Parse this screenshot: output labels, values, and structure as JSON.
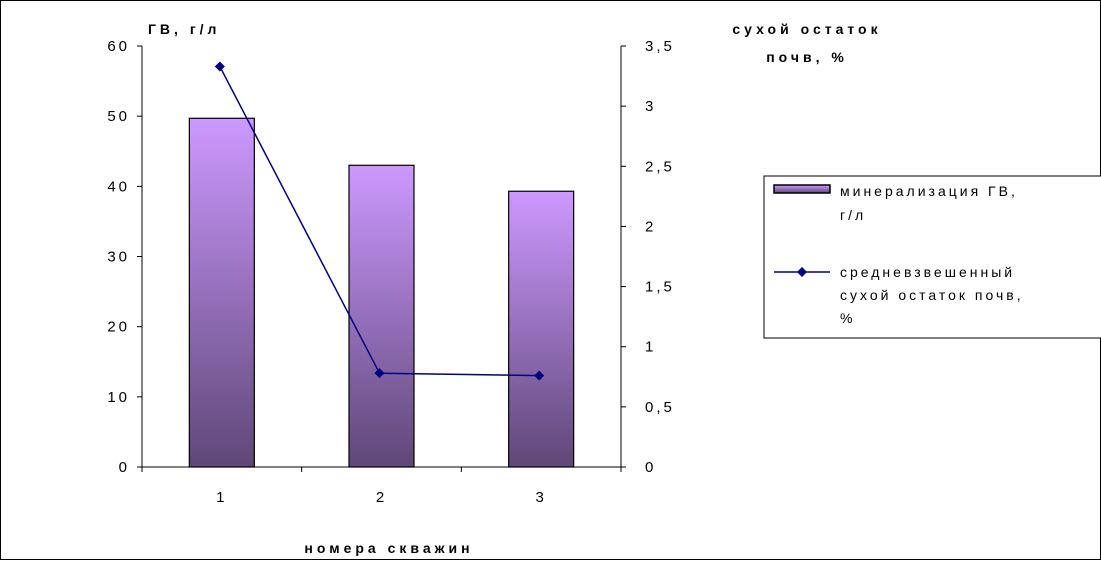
{
  "chart_data": {
    "type": "bar+line",
    "categories": [
      "1",
      "2",
      "3"
    ],
    "series": [
      {
        "name": "минерализация ГВ, г/л",
        "type": "bar",
        "axis": "left",
        "values": [
          49.7,
          43.0,
          39.3
        ],
        "color_top": "#cc99ff",
        "color_bottom": "#5f4777"
      },
      {
        "name": "средневзвешенный сухой остаток почв, %",
        "type": "line",
        "axis": "right",
        "values": [
          3.33,
          0.78,
          0.76
        ],
        "color": "#000080"
      }
    ],
    "y_left": {
      "title": "ГВ, г/л",
      "ylim": [
        0,
        60
      ],
      "ticks": [
        "0",
        "10",
        "20",
        "30",
        "40",
        "50",
        "60"
      ]
    },
    "y_right": {
      "title_lines": [
        "сухой остаток",
        "почв, %"
      ],
      "ylim": [
        0,
        3.5
      ],
      "ticks": [
        "0",
        "0,5",
        "1",
        "1,5",
        "2",
        "2,5",
        "3",
        "3,5"
      ]
    },
    "xlabel": "номера скважин",
    "legend": {
      "placement": "right",
      "items": [
        {
          "lines": [
            "минерализация ГВ,",
            "г/л"
          ],
          "kind": "bar"
        },
        {
          "lines": [
            "средневзвешенный",
            "сухой остаток почв,",
            "%"
          ],
          "kind": "line"
        }
      ]
    },
    "grid": false
  }
}
